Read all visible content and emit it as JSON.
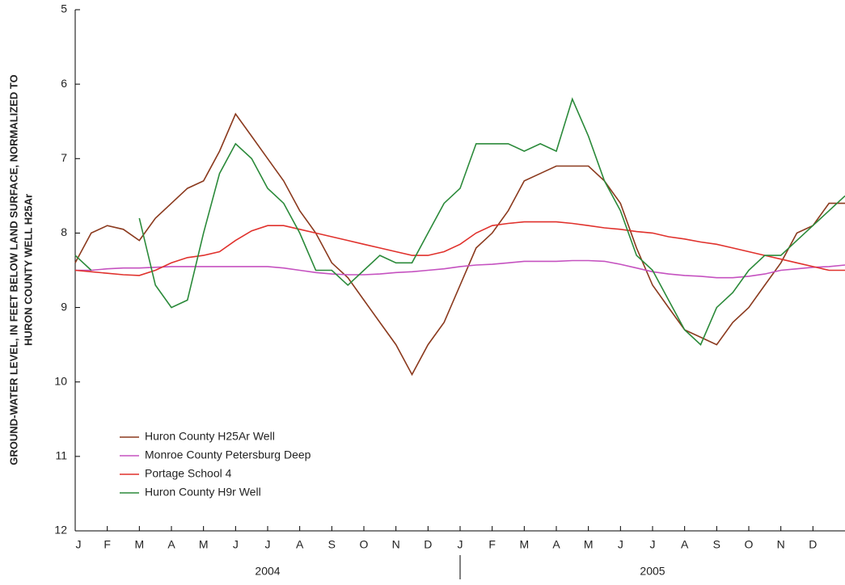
{
  "chart_data": {
    "type": "line",
    "y_label_lines": [
      "GROUND-WATER LEVEL, IN FEET BELOW LAND SURFACE, NORMALIZED TO",
      "HURON COUNTY WELL H25Ar"
    ],
    "ylim": [
      5,
      12
    ],
    "y_inverted": true,
    "yticks": [
      5,
      6,
      7,
      8,
      9,
      10,
      11,
      12
    ],
    "xlim": [
      0,
      24
    ],
    "xticks": [
      {
        "value": 0,
        "label": "J"
      },
      {
        "value": 1,
        "label": "F"
      },
      {
        "value": 2,
        "label": "M"
      },
      {
        "value": 3,
        "label": "A"
      },
      {
        "value": 4,
        "label": "M"
      },
      {
        "value": 5,
        "label": "J"
      },
      {
        "value": 6,
        "label": "J"
      },
      {
        "value": 7,
        "label": "A"
      },
      {
        "value": 8,
        "label": "S"
      },
      {
        "value": 9,
        "label": "O"
      },
      {
        "value": 10,
        "label": "N"
      },
      {
        "value": 11,
        "label": "D"
      },
      {
        "value": 12,
        "label": "J"
      },
      {
        "value": 13,
        "label": "F"
      },
      {
        "value": 14,
        "label": "M"
      },
      {
        "value": 15,
        "label": "A"
      },
      {
        "value": 16,
        "label": "M"
      },
      {
        "value": 17,
        "label": "J"
      },
      {
        "value": 18,
        "label": "J"
      },
      {
        "value": 19,
        "label": "A"
      },
      {
        "value": 20,
        "label": "S"
      },
      {
        "value": 21,
        "label": "O"
      },
      {
        "value": 22,
        "label": "N"
      },
      {
        "value": 23,
        "label": "D"
      }
    ],
    "year_groups": [
      {
        "label": "2004",
        "start": 0,
        "end": 12
      },
      {
        "label": "2005",
        "start": 12,
        "end": 24
      }
    ],
    "x": [
      0,
      0.5,
      1,
      1.5,
      2,
      2.5,
      3,
      3.5,
      4,
      4.5,
      5,
      5.5,
      6,
      6.5,
      7,
      7.5,
      8,
      8.5,
      9,
      9.5,
      10,
      10.5,
      11,
      11.5,
      12,
      12.5,
      13,
      13.5,
      14,
      14.5,
      15,
      15.5,
      16,
      16.5,
      17,
      17.5,
      18,
      18.5,
      19,
      19.5,
      20,
      20.5,
      21,
      21.5,
      22,
      22.5,
      23,
      23.5,
      24
    ],
    "series": [
      {
        "name": "Huron County H25Ar Well",
        "color": "#8b3a1e",
        "values": [
          8.4,
          8.0,
          7.9,
          7.95,
          8.1,
          7.8,
          7.6,
          7.4,
          7.3,
          6.9,
          6.4,
          6.7,
          7.0,
          7.3,
          7.7,
          8.0,
          8.4,
          8.6,
          8.9,
          9.2,
          9.5,
          9.9,
          9.5,
          9.2,
          8.7,
          8.2,
          8.0,
          7.7,
          7.3,
          7.2,
          7.1,
          7.1,
          7.1,
          7.3,
          7.6,
          8.2,
          8.7,
          9.0,
          9.3,
          9.4,
          9.5,
          9.2,
          9.0,
          8.7,
          8.4,
          8.0,
          7.9,
          7.6,
          7.6
        ]
      },
      {
        "name": "Monroe County Petersburg Deep",
        "color": "#c552c0",
        "values": [
          8.5,
          8.5,
          8.48,
          8.47,
          8.47,
          8.46,
          8.45,
          8.45,
          8.45,
          8.45,
          8.45,
          8.45,
          8.45,
          8.47,
          8.5,
          8.53,
          8.55,
          8.56,
          8.56,
          8.55,
          8.53,
          8.52,
          8.5,
          8.48,
          8.45,
          8.43,
          8.42,
          8.4,
          8.38,
          8.38,
          8.38,
          8.37,
          8.37,
          8.38,
          8.42,
          8.47,
          8.52,
          8.55,
          8.57,
          8.58,
          8.6,
          8.6,
          8.58,
          8.55,
          8.5,
          8.48,
          8.46,
          8.45,
          8.43
        ]
      },
      {
        "name": "Portage School 4",
        "color": "#e0312c",
        "values": [
          8.5,
          8.52,
          8.54,
          8.56,
          8.57,
          8.5,
          8.4,
          8.33,
          8.3,
          8.25,
          8.1,
          7.97,
          7.9,
          7.9,
          7.95,
          8.0,
          8.05,
          8.1,
          8.15,
          8.2,
          8.25,
          8.3,
          8.3,
          8.25,
          8.15,
          8.0,
          7.9,
          7.87,
          7.85,
          7.85,
          7.85,
          7.87,
          7.9,
          7.93,
          7.95,
          7.98,
          8.0,
          8.05,
          8.08,
          8.12,
          8.15,
          8.2,
          8.25,
          8.3,
          8.35,
          8.4,
          8.45,
          8.5,
          8.5
        ]
      },
      {
        "name": "Huron County H9r Well",
        "color": "#2b8a3a",
        "values": [
          8.3,
          8.5,
          null,
          null,
          7.8,
          8.7,
          9.0,
          8.9,
          8.0,
          7.2,
          6.8,
          7.0,
          7.4,
          7.6,
          8.0,
          8.5,
          8.5,
          8.7,
          8.5,
          8.3,
          8.4,
          8.4,
          8.0,
          7.6,
          7.4,
          6.8,
          6.8,
          6.8,
          6.9,
          6.8,
          6.9,
          6.2,
          6.7,
          7.3,
          7.7,
          8.3,
          8.5,
          8.9,
          9.3,
          9.5,
          9.0,
          8.8,
          8.5,
          8.3,
          8.3,
          8.1,
          7.9,
          7.7,
          7.5
        ]
      }
    ]
  }
}
